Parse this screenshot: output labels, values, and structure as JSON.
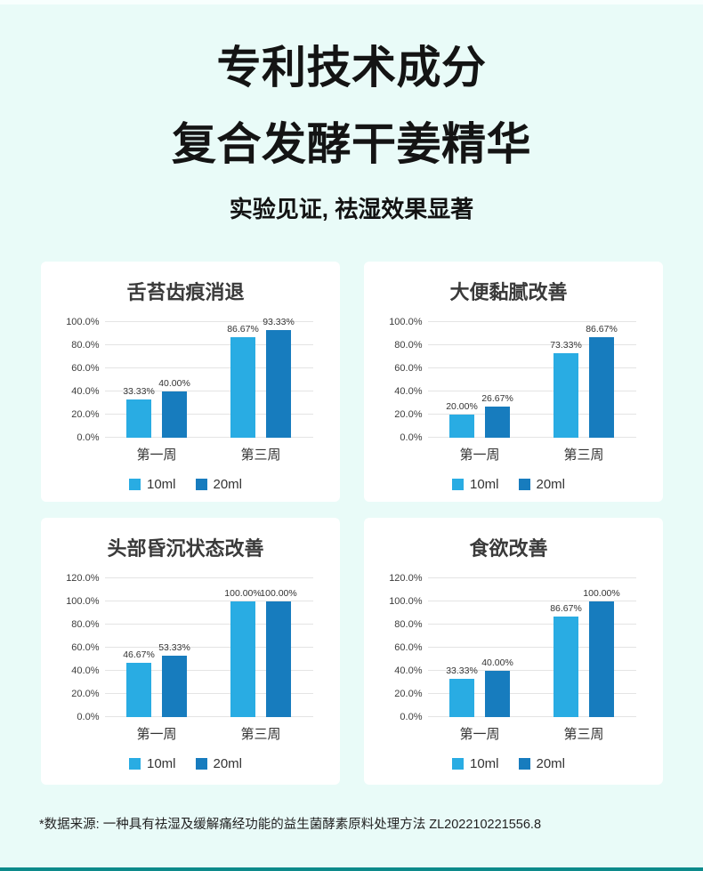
{
  "page": {
    "title_line1": "专利技术成分",
    "title_line2": "复合发酵干姜精华",
    "subtitle": "实验见证, 祛湿效果显著",
    "footnote": "*数据来源: 一种具有祛湿及缓解痛经功能的益生菌酵素原料处理方法 ZL202210221556.8"
  },
  "colors": {
    "background": "#E9FBF8",
    "card": "#FFFFFF",
    "series": [
      "#29ACE3",
      "#177CBE"
    ],
    "gridline": "#E4E4E4",
    "bottom_band": "#0C8A8B"
  },
  "chart_data": [
    {
      "type": "bar",
      "title": "舌苔齿痕消退",
      "categories": [
        "第一周",
        "第三周"
      ],
      "series": [
        {
          "name": "10ml",
          "values": [
            33.33,
            86.67
          ],
          "labels": [
            "33.33%",
            "86.67%"
          ]
        },
        {
          "name": "20ml",
          "values": [
            40.0,
            93.33
          ],
          "labels": [
            "40.00%",
            "93.33%"
          ]
        }
      ],
      "ylim": [
        0,
        100
      ],
      "ytick_labels": [
        "0.0%",
        "20.0%",
        "40.0%",
        "60.0%",
        "80.0%",
        "100.0%"
      ],
      "grid": true,
      "legend_position": "bottom"
    },
    {
      "type": "bar",
      "title": "大便黏腻改善",
      "categories": [
        "第一周",
        "第三周"
      ],
      "series": [
        {
          "name": "10ml",
          "values": [
            20.0,
            73.33
          ],
          "labels": [
            "20.00%",
            "73.33%"
          ]
        },
        {
          "name": "20ml",
          "values": [
            26.67,
            86.67
          ],
          "labels": [
            "26.67%",
            "86.67%"
          ]
        }
      ],
      "ylim": [
        0,
        100
      ],
      "ytick_labels": [
        "0.0%",
        "20.0%",
        "40.0%",
        "60.0%",
        "80.0%",
        "100.0%"
      ],
      "grid": true,
      "legend_position": "bottom"
    },
    {
      "type": "bar",
      "title": "头部昏沉状态改善",
      "categories": [
        "第一周",
        "第三周"
      ],
      "series": [
        {
          "name": "10ml",
          "values": [
            46.67,
            100.0
          ],
          "labels": [
            "46.67%",
            "100.00%"
          ]
        },
        {
          "name": "20ml",
          "values": [
            53.33,
            100.0
          ],
          "labels": [
            "53.33%",
            "100.00%"
          ]
        }
      ],
      "ylim": [
        0,
        120
      ],
      "ytick_labels": [
        "0.0%",
        "20.0%",
        "40.0%",
        "60.0%",
        "80.0%",
        "100.0%",
        "120.0%"
      ],
      "grid": true,
      "legend_position": "bottom"
    },
    {
      "type": "bar",
      "title": "食欲改善",
      "categories": [
        "第一周",
        "第三周"
      ],
      "series": [
        {
          "name": "10ml",
          "values": [
            33.33,
            86.67
          ],
          "labels": [
            "33.33%",
            "86.67%"
          ]
        },
        {
          "name": "20ml",
          "values": [
            40.0,
            100.0
          ],
          "labels": [
            "40.00%",
            "100.00%"
          ]
        }
      ],
      "ylim": [
        0,
        120
      ],
      "ytick_labels": [
        "0.0%",
        "20.0%",
        "40.0%",
        "60.0%",
        "80.0%",
        "100.0%",
        "120.0%"
      ],
      "grid": true,
      "legend_position": "bottom"
    }
  ]
}
